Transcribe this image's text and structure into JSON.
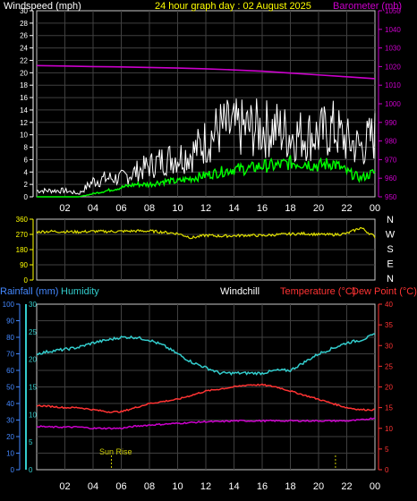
{
  "chart_data": [
    {
      "type": "line",
      "panel": "wind-baro",
      "labels": {
        "windspeed": "Windspeed (mph)",
        "title": "24 hour graph day : 02 August 2025",
        "barometer": "Barometer (mb)"
      },
      "x_ticks": [
        "02",
        "04",
        "06",
        "08",
        "10",
        "12",
        "14",
        "16",
        "18",
        "20",
        "22",
        "00"
      ],
      "x_range": [
        0,
        24
      ],
      "y_left": {
        "range": [
          0,
          30
        ],
        "ticks": [
          "0",
          "2",
          "4",
          "6",
          "8",
          "10",
          "12",
          "14",
          "16",
          "18",
          "20",
          "22",
          "24",
          "26",
          "28",
          "30"
        ]
      },
      "y_right": {
        "range": [
          950,
          1050
        ],
        "ticks": [
          "950",
          "960",
          "970",
          "980",
          "990",
          "1000",
          "1010",
          "1020",
          "1030",
          "1040",
          "1050"
        ]
      },
      "colors": {
        "gust": "#ffffff",
        "wind": "#00ff00",
        "barometer": "#cc00cc",
        "left_axis": "#ffffff",
        "right_axis": "#cc00cc",
        "title": "#ffff00"
      },
      "series": [
        {
          "key": "barometer",
          "x": [
            0,
            2,
            4,
            6,
            8,
            10,
            12,
            14,
            16,
            18,
            20,
            22,
            24
          ],
          "y": [
            1020.5,
            1020.3,
            1020,
            1019.8,
            1019.5,
            1019.2,
            1018.8,
            1018.2,
            1017.5,
            1016.5,
            1015.5,
            1014.5,
            1013.5
          ]
        },
        {
          "key": "gust",
          "x": [
            0,
            1,
            2,
            3,
            4,
            5,
            6,
            7,
            8,
            9,
            10,
            11,
            12,
            13,
            14,
            15,
            16,
            17,
            18,
            19,
            20,
            21,
            22,
            23,
            24
          ],
          "y": [
            1,
            1,
            1,
            0.5,
            2.5,
            3,
            3,
            4,
            5,
            6,
            6.5,
            7,
            9,
            11,
            11,
            11,
            11,
            11,
            10,
            10,
            10,
            11,
            9,
            8,
            10
          ]
        },
        {
          "key": "wind",
          "x": [
            0,
            1,
            2,
            3,
            4,
            5,
            6,
            7,
            8,
            9,
            10,
            11,
            12,
            13,
            14,
            15,
            16,
            17,
            18,
            19,
            20,
            21,
            22,
            23,
            24
          ],
          "y": [
            0,
            0,
            0,
            0,
            0.5,
            1,
            1.5,
            2,
            2,
            2.5,
            2.5,
            3,
            3.5,
            4,
            4.5,
            4.5,
            5,
            5,
            5.5,
            5.5,
            5,
            5.5,
            4,
            3,
            4
          ]
        }
      ]
    },
    {
      "type": "line",
      "panel": "wind-direction",
      "x_range": [
        0,
        24
      ],
      "y_range": [
        0,
        360
      ],
      "y_ticks": [
        "0",
        "90",
        "180",
        "270",
        "360"
      ],
      "compass": [
        "N",
        "W",
        "S",
        "E",
        "N"
      ],
      "colors": {
        "direction": "#e0e000",
        "axis": "#ffff00",
        "compass": "#ffffff"
      },
      "series": [
        {
          "key": "direction",
          "x": [
            0,
            1,
            2,
            3,
            4,
            5,
            6,
            7,
            8,
            9,
            10,
            11,
            12,
            13,
            14,
            15,
            16,
            17,
            18,
            19,
            20,
            21,
            22,
            23,
            24
          ],
          "y": [
            285,
            288,
            286,
            285,
            288,
            287,
            288,
            290,
            290,
            283,
            275,
            250,
            265,
            260,
            262,
            265,
            263,
            268,
            272,
            275,
            270,
            268,
            275,
            310,
            255
          ]
        }
      ]
    },
    {
      "type": "line",
      "panel": "temp-humidity",
      "labels": {
        "rainfall": "Rainfall (mm)",
        "humidity": "Humidity",
        "windchill": "Windchill",
        "temperature": "Temperature (°C)",
        "dewpoint": "Dew Point (°C)",
        "sunrise": "Sun Rise"
      },
      "x_ticks": [
        "02",
        "04",
        "06",
        "08",
        "10",
        "12",
        "14",
        "16",
        "18",
        "20",
        "22",
        "00"
      ],
      "x_range": [
        0,
        24
      ],
      "y_rain": {
        "range": [
          0,
          100
        ],
        "ticks": [
          "0",
          "10",
          "20",
          "30",
          "40",
          "50",
          "60",
          "70",
          "80",
          "90",
          "100"
        ]
      },
      "y_humidity_scale": {
        "range": [
          0,
          30
        ],
        "ticks": [
          "0",
          "5",
          "10",
          "15",
          "20",
          "25",
          "30"
        ]
      },
      "y_temp": {
        "range": [
          0,
          40
        ],
        "ticks": [
          "0",
          "5",
          "10",
          "15",
          "20",
          "25",
          "30",
          "35",
          "40"
        ]
      },
      "colors": {
        "humidity": "#33cccc",
        "temperature": "#ff3333",
        "dewpoint": "#cc00cc",
        "rain_axis": "#4488ff",
        "humidity_axis": "#33cccc",
        "temp_axis": "#ff3333",
        "windchill_label": "#ffffff",
        "sunrise": "#cccc00"
      },
      "series": [
        {
          "key": "humidity",
          "x": [
            0,
            1,
            2,
            3,
            4,
            5,
            6,
            7,
            8,
            9,
            10,
            11,
            12,
            13,
            14,
            15,
            16,
            17,
            18,
            19,
            20,
            21,
            22,
            23,
            24
          ],
          "y": [
            21,
            21.5,
            21.8,
            22.2,
            23,
            23.5,
            24,
            24,
            23.5,
            22.5,
            21,
            19.5,
            18.5,
            17.5,
            17.5,
            17.5,
            17.5,
            18,
            18,
            19.5,
            21,
            22,
            23,
            23.5,
            24.5
          ]
        },
        {
          "key": "temperature",
          "x": [
            0,
            1,
            2,
            3,
            4,
            5,
            6,
            7,
            8,
            9,
            10,
            11,
            12,
            13,
            14,
            15,
            16,
            17,
            18,
            19,
            20,
            21,
            22,
            23,
            24
          ],
          "y": [
            15.5,
            15.3,
            15,
            15,
            14.5,
            14,
            14,
            15,
            16,
            16.5,
            17,
            18,
            19,
            19.5,
            20,
            20.5,
            20.5,
            20,
            19,
            18,
            17,
            16,
            15,
            14.5,
            14.5
          ]
        },
        {
          "key": "dewpoint",
          "x": [
            0,
            1,
            2,
            3,
            4,
            5,
            6,
            7,
            8,
            9,
            10,
            11,
            12,
            13,
            14,
            15,
            16,
            17,
            18,
            19,
            20,
            21,
            22,
            23,
            24
          ],
          "y": [
            10.5,
            10.3,
            10.3,
            10.3,
            10,
            10,
            10,
            10.5,
            10.8,
            11,
            11.2,
            11.4,
            11.6,
            11.6,
            11.8,
            11.8,
            11.8,
            11.8,
            11.8,
            11.8,
            11.8,
            11.8,
            11.8,
            12,
            12.5
          ]
        }
      ],
      "markers": [
        {
          "key": "sunrise",
          "x": 5.3
        },
        {
          "key": "sunset",
          "x": 21.2
        }
      ]
    }
  ]
}
